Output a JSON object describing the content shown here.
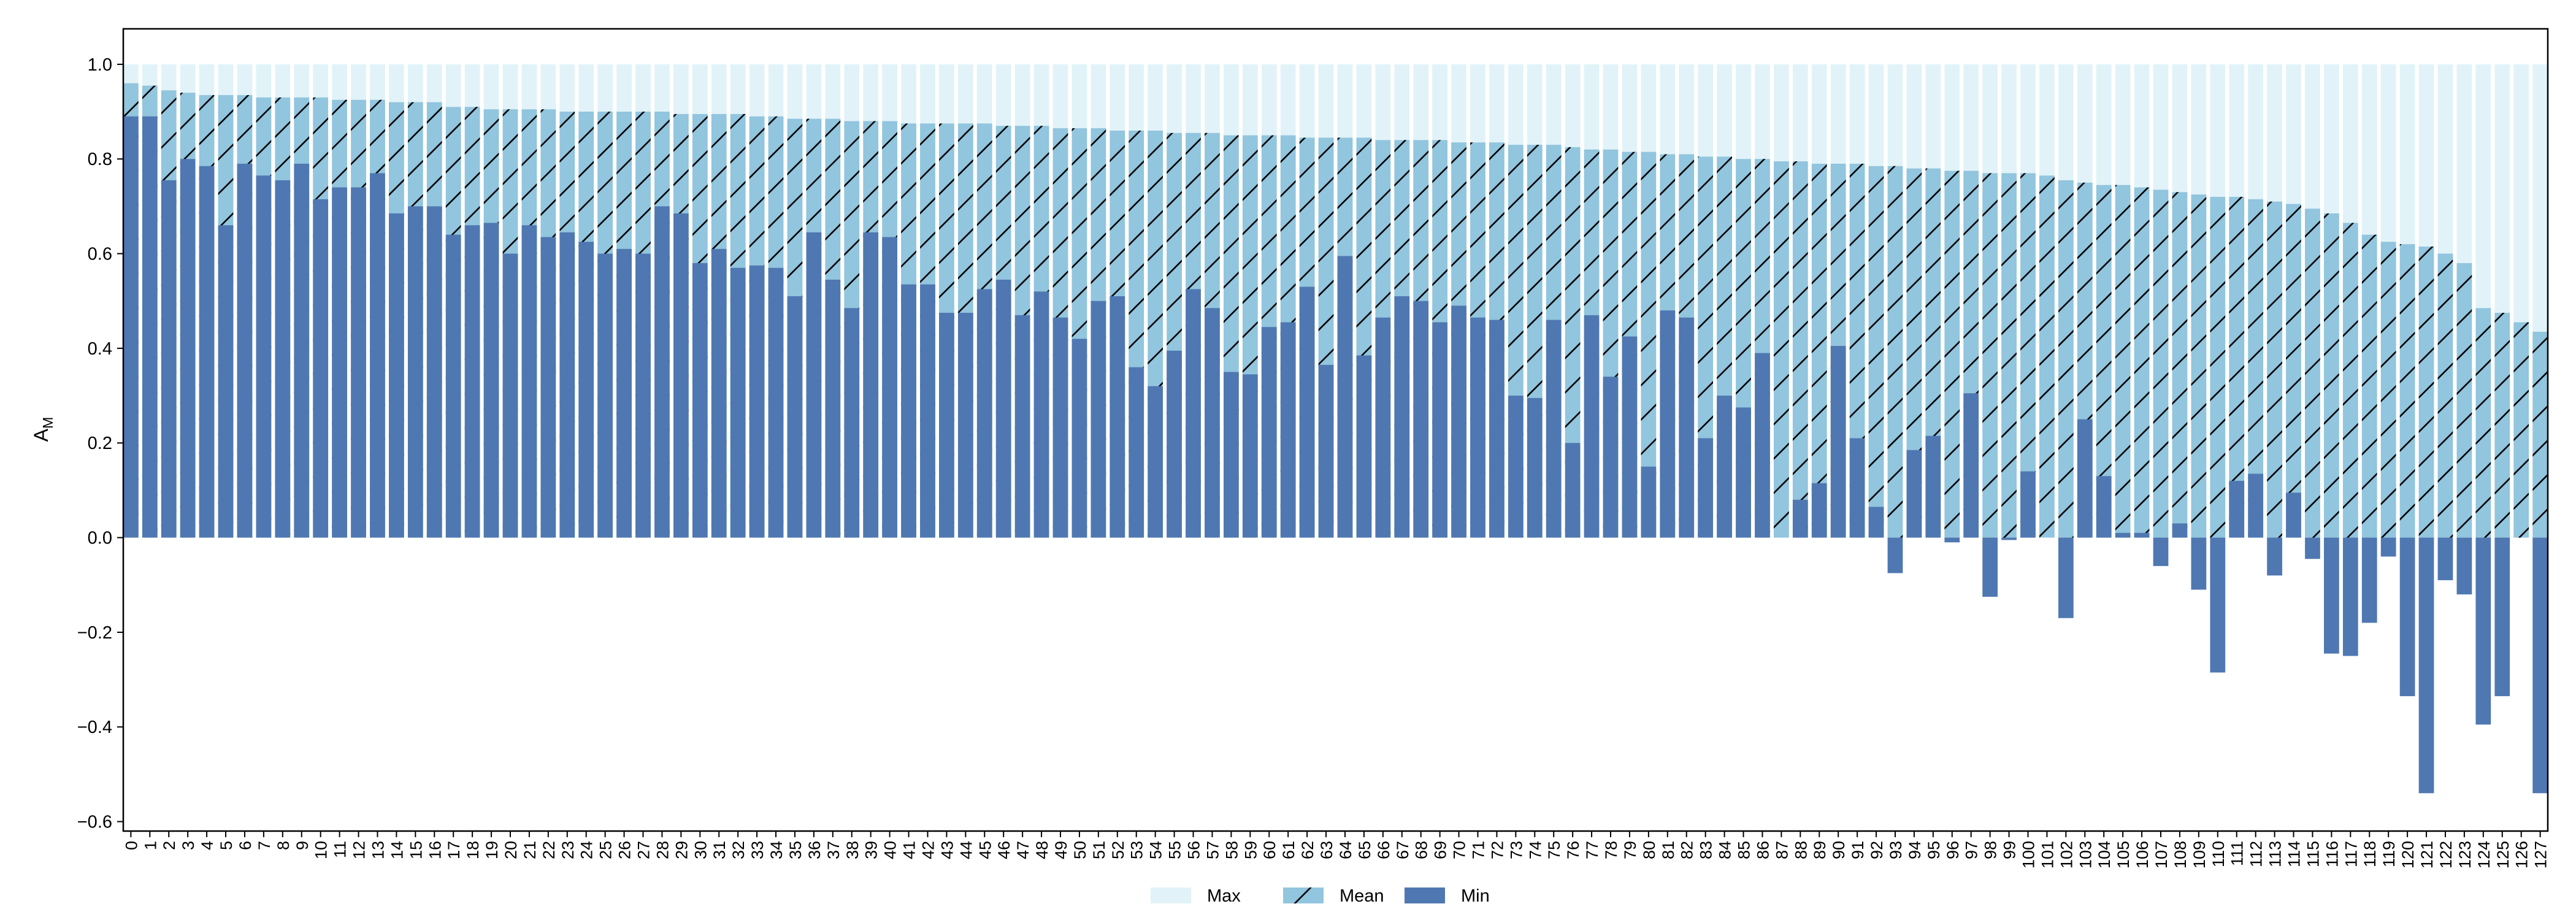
{
  "chart_data": {
    "type": "bar",
    "ylabel": "A",
    "ylabel_subscript": "M",
    "categories": [
      0,
      1,
      2,
      3,
      4,
      5,
      6,
      7,
      8,
      9,
      10,
      11,
      12,
      13,
      14,
      15,
      16,
      17,
      18,
      19,
      20,
      21,
      22,
      23,
      24,
      25,
      26,
      27,
      28,
      29,
      30,
      31,
      32,
      33,
      34,
      35,
      36,
      37,
      38,
      39,
      40,
      41,
      42,
      43,
      44,
      45,
      46,
      47,
      48,
      49,
      50,
      51,
      52,
      53,
      54,
      55,
      56,
      57,
      58,
      59,
      60,
      61,
      62,
      63,
      64,
      65,
      66,
      67,
      68,
      69,
      70,
      71,
      72,
      73,
      74,
      75,
      76,
      77,
      78,
      79,
      80,
      81,
      82,
      83,
      84,
      85,
      86,
      87,
      88,
      89,
      90,
      91,
      92,
      93,
      94,
      95,
      96,
      97,
      98,
      99,
      100,
      101,
      102,
      103,
      104,
      105,
      106,
      107,
      108,
      109,
      110,
      111,
      112,
      113,
      114,
      115,
      116,
      117,
      118,
      119,
      120,
      121,
      122,
      123,
      124,
      125,
      126,
      127
    ],
    "series": [
      {
        "name": "Max",
        "color": "#e1f3f8",
        "values": [
          1.0,
          1.0,
          1.0,
          1.0,
          1.0,
          1.0,
          1.0,
          1.0,
          1.0,
          1.0,
          1.0,
          1.0,
          1.0,
          1.0,
          1.0,
          1.0,
          1.0,
          1.0,
          1.0,
          1.0,
          1.0,
          1.0,
          1.0,
          1.0,
          1.0,
          1.0,
          1.0,
          1.0,
          1.0,
          1.0,
          1.0,
          1.0,
          1.0,
          1.0,
          1.0,
          1.0,
          1.0,
          1.0,
          1.0,
          1.0,
          1.0,
          1.0,
          1.0,
          1.0,
          1.0,
          1.0,
          1.0,
          1.0,
          1.0,
          1.0,
          1.0,
          1.0,
          1.0,
          1.0,
          1.0,
          1.0,
          1.0,
          1.0,
          1.0,
          1.0,
          1.0,
          1.0,
          1.0,
          1.0,
          1.0,
          1.0,
          1.0,
          1.0,
          1.0,
          1.0,
          1.0,
          1.0,
          1.0,
          1.0,
          1.0,
          1.0,
          1.0,
          1.0,
          1.0,
          1.0,
          1.0,
          1.0,
          1.0,
          1.0,
          1.0,
          1.0,
          1.0,
          1.0,
          1.0,
          1.0,
          1.0,
          1.0,
          1.0,
          1.0,
          1.0,
          1.0,
          1.0,
          1.0,
          1.0,
          1.0,
          1.0,
          1.0,
          1.0,
          1.0,
          1.0,
          1.0,
          1.0,
          1.0,
          1.0,
          1.0,
          1.0,
          1.0,
          1.0,
          1.0,
          1.0,
          1.0,
          1.0,
          1.0,
          1.0,
          1.0,
          1.0,
          1.0,
          1.0,
          1.0,
          1.0,
          1.0,
          1.0,
          1.0
        ]
      },
      {
        "name": "Mean",
        "color": "#92c5de",
        "hatch": "/",
        "values": [
          0.96,
          0.955,
          0.945,
          0.94,
          0.935,
          0.935,
          0.935,
          0.93,
          0.93,
          0.93,
          0.93,
          0.925,
          0.925,
          0.925,
          0.92,
          0.92,
          0.92,
          0.91,
          0.91,
          0.905,
          0.905,
          0.905,
          0.905,
          0.9,
          0.9,
          0.9,
          0.9,
          0.9,
          0.9,
          0.895,
          0.895,
          0.895,
          0.895,
          0.89,
          0.89,
          0.885,
          0.885,
          0.885,
          0.88,
          0.88,
          0.88,
          0.875,
          0.875,
          0.875,
          0.875,
          0.875,
          0.87,
          0.87,
          0.87,
          0.865,
          0.865,
          0.865,
          0.86,
          0.86,
          0.86,
          0.855,
          0.855,
          0.855,
          0.85,
          0.85,
          0.85,
          0.85,
          0.845,
          0.845,
          0.845,
          0.845,
          0.84,
          0.84,
          0.84,
          0.84,
          0.835,
          0.835,
          0.835,
          0.83,
          0.83,
          0.83,
          0.825,
          0.82,
          0.82,
          0.815,
          0.815,
          0.81,
          0.81,
          0.805,
          0.805,
          0.8,
          0.8,
          0.795,
          0.795,
          0.79,
          0.79,
          0.79,
          0.785,
          0.785,
          0.78,
          0.78,
          0.775,
          0.775,
          0.77,
          0.77,
          0.77,
          0.765,
          0.755,
          0.75,
          0.745,
          0.745,
          0.74,
          0.735,
          0.73,
          0.725,
          0.72,
          0.72,
          0.715,
          0.71,
          0.705,
          0.695,
          0.685,
          0.665,
          0.64,
          0.625,
          0.62,
          0.615,
          0.6,
          0.58,
          0.485,
          0.475,
          0.455,
          0.435
        ]
      },
      {
        "name": "Min",
        "color": "#4f78b2",
        "values": [
          0.89,
          0.89,
          0.755,
          0.8,
          0.785,
          0.66,
          0.79,
          0.765,
          0.755,
          0.79,
          0.715,
          0.74,
          0.74,
          0.77,
          0.685,
          0.7,
          0.7,
          0.64,
          0.66,
          0.665,
          0.6,
          0.66,
          0.635,
          0.645,
          0.625,
          0.6,
          0.61,
          0.6,
          0.7,
          0.685,
          0.58,
          0.61,
          0.57,
          0.575,
          0.57,
          0.51,
          0.645,
          0.545,
          0.485,
          0.645,
          0.635,
          0.535,
          0.535,
          0.475,
          0.475,
          0.525,
          0.545,
          0.47,
          0.52,
          0.465,
          0.42,
          0.5,
          0.51,
          0.36,
          0.32,
          0.395,
          0.525,
          0.485,
          0.35,
          0.345,
          0.445,
          0.455,
          0.53,
          0.365,
          0.595,
          0.385,
          0.465,
          0.51,
          0.5,
          0.455,
          0.49,
          0.465,
          0.46,
          0.3,
          0.295,
          0.46,
          0.2,
          0.47,
          0.34,
          0.425,
          0.15,
          0.48,
          0.465,
          0.21,
          0.3,
          0.275,
          0.39,
          0.0,
          0.08,
          0.115,
          0.405,
          0.21,
          0.065,
          -0.075,
          0.185,
          0.215,
          -0.01,
          0.305,
          -0.125,
          -0.005,
          0.14,
          0.0,
          -0.17,
          0.25,
          0.13,
          0.01,
          0.01,
          -0.06,
          0.03,
          -0.11,
          -0.285,
          0.12,
          0.135,
          -0.08,
          0.095,
          -0.045,
          -0.245,
          -0.25,
          -0.18,
          -0.04,
          -0.335,
          -0.54,
          -0.09,
          -0.12,
          -0.395,
          -0.335,
          0.0,
          -0.54
        ]
      }
    ],
    "ylim": [
      -0.62,
      1.075
    ],
    "yticks": [
      {
        "value": -0.6,
        "label": "−0.6"
      },
      {
        "value": -0.4,
        "label": "−0.4"
      },
      {
        "value": -0.2,
        "label": "−0.2"
      },
      {
        "value": 0.0,
        "label": "0.0"
      },
      0.2,
      0.4,
      0.6,
      0.8,
      {
        "value": 1.0,
        "label": "1.0"
      }
    ],
    "grid": false,
    "legend": "bottom"
  }
}
